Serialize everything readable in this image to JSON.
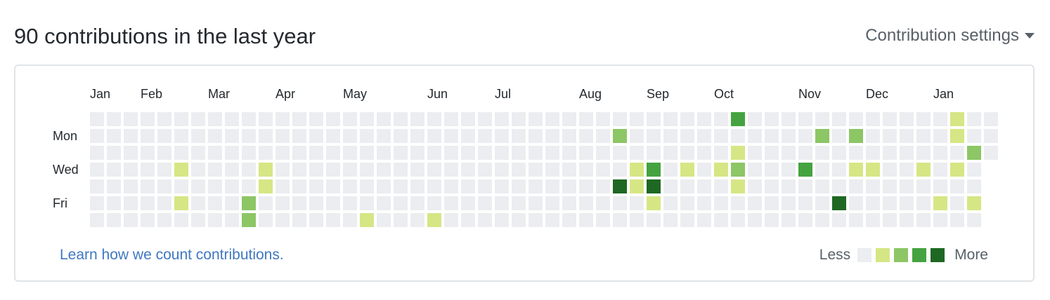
{
  "header": {
    "title": "90 contributions in the last year",
    "settings_label": "Contribution settings"
  },
  "calendar": {
    "months": [
      {
        "label": "Jan",
        "week": 0
      },
      {
        "label": "Feb",
        "week": 3
      },
      {
        "label": "Mar",
        "week": 7
      },
      {
        "label": "Apr",
        "week": 11
      },
      {
        "label": "May",
        "week": 15
      },
      {
        "label": "Jun",
        "week": 20
      },
      {
        "label": "Jul",
        "week": 24
      },
      {
        "label": "Aug",
        "week": 29
      },
      {
        "label": "Sep",
        "week": 33
      },
      {
        "label": "Oct",
        "week": 37
      },
      {
        "label": "Nov",
        "week": 42
      },
      {
        "label": "Dec",
        "week": 46
      },
      {
        "label": "Jan",
        "week": 50
      }
    ],
    "day_labels": [
      {
        "label": "Mon",
        "row": 1
      },
      {
        "label": "Wed",
        "row": 3
      },
      {
        "label": "Fri",
        "row": 5
      }
    ],
    "weeks": 54,
    "last_week_days": 3,
    "colors": [
      "#ebedf0",
      "#d6e685",
      "#8cc665",
      "#44a340",
      "#1e6823"
    ],
    "activity": [
      {
        "week": 5,
        "day": 3,
        "level": 1
      },
      {
        "week": 5,
        "day": 5,
        "level": 1
      },
      {
        "week": 9,
        "day": 5,
        "level": 2
      },
      {
        "week": 9,
        "day": 6,
        "level": 2
      },
      {
        "week": 10,
        "day": 3,
        "level": 1
      },
      {
        "week": 10,
        "day": 4,
        "level": 1
      },
      {
        "week": 16,
        "day": 6,
        "level": 1
      },
      {
        "week": 20,
        "day": 6,
        "level": 1
      },
      {
        "week": 31,
        "day": 1,
        "level": 2
      },
      {
        "week": 31,
        "day": 4,
        "level": 4
      },
      {
        "week": 32,
        "day": 3,
        "level": 1
      },
      {
        "week": 32,
        "day": 4,
        "level": 1
      },
      {
        "week": 33,
        "day": 3,
        "level": 3
      },
      {
        "week": 33,
        "day": 4,
        "level": 4
      },
      {
        "week": 33,
        "day": 5,
        "level": 1
      },
      {
        "week": 35,
        "day": 3,
        "level": 1
      },
      {
        "week": 37,
        "day": 3,
        "level": 1
      },
      {
        "week": 38,
        "day": 0,
        "level": 3
      },
      {
        "week": 38,
        "day": 2,
        "level": 1
      },
      {
        "week": 38,
        "day": 3,
        "level": 2
      },
      {
        "week": 38,
        "day": 4,
        "level": 1
      },
      {
        "week": 42,
        "day": 3,
        "level": 3
      },
      {
        "week": 43,
        "day": 1,
        "level": 2
      },
      {
        "week": 44,
        "day": 5,
        "level": 4
      },
      {
        "week": 45,
        "day": 1,
        "level": 2
      },
      {
        "week": 45,
        "day": 3,
        "level": 1
      },
      {
        "week": 46,
        "day": 3,
        "level": 1
      },
      {
        "week": 49,
        "day": 3,
        "level": 1
      },
      {
        "week": 50,
        "day": 5,
        "level": 1
      },
      {
        "week": 51,
        "day": 0,
        "level": 1
      },
      {
        "week": 51,
        "day": 1,
        "level": 1
      },
      {
        "week": 51,
        "day": 3,
        "level": 1
      },
      {
        "week": 52,
        "day": 2,
        "level": 2
      },
      {
        "week": 52,
        "day": 5,
        "level": 1
      }
    ]
  },
  "footer": {
    "learn_link": "Learn how we count contributions.",
    "legend_less": "Less",
    "legend_more": "More"
  }
}
